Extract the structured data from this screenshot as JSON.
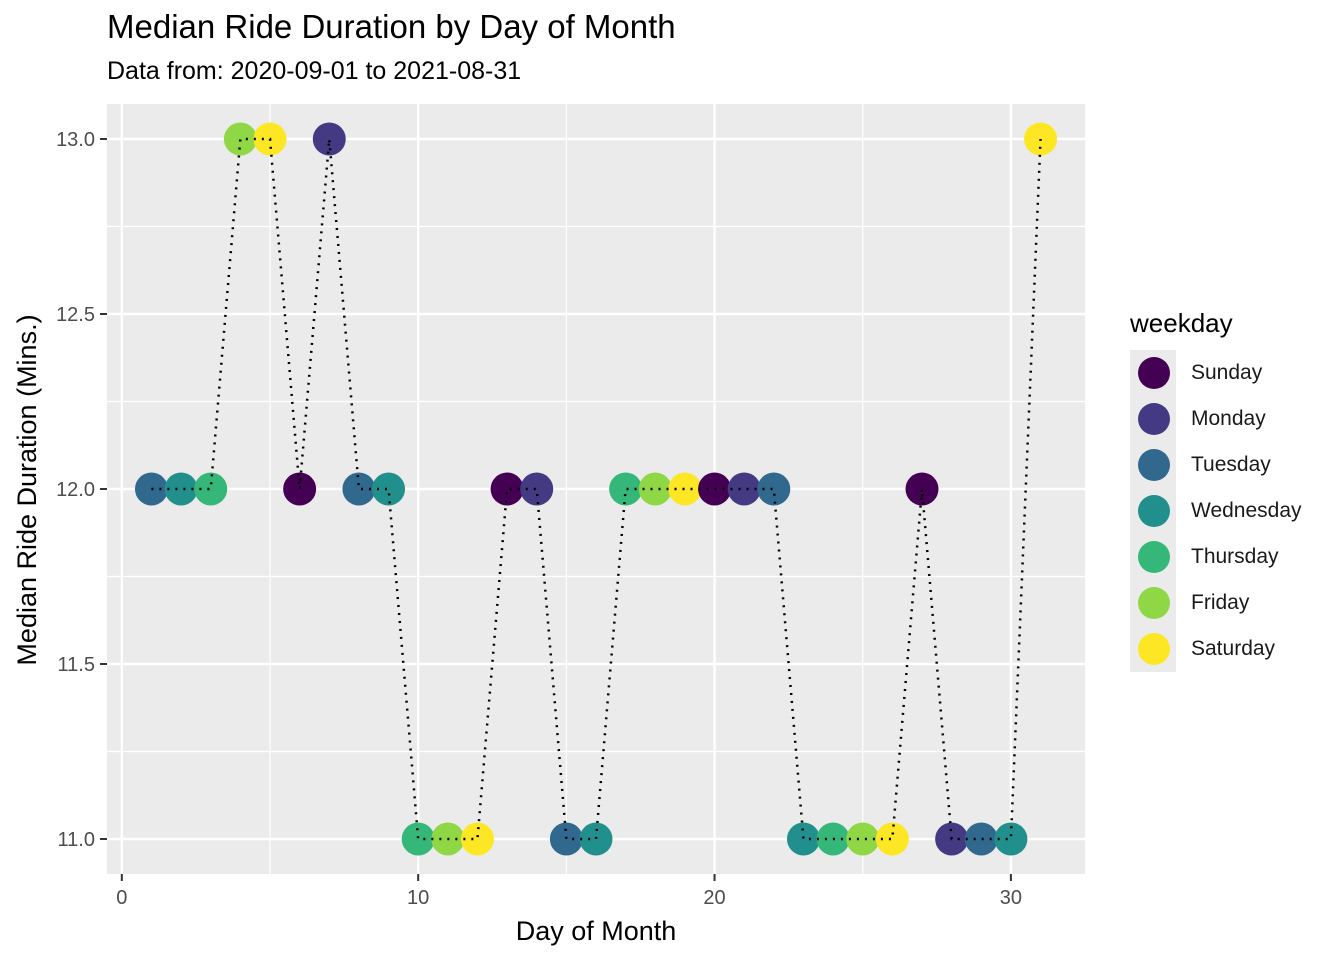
{
  "title": "Median Ride Duration by Day of Month",
  "subtitle": "Data from: 2020-09-01 to 2021-08-31",
  "chart_data": {
    "type": "scatter",
    "title": "Median Ride Duration by Day of Month",
    "subtitle": "Data from: 2020-09-01 to 2021-08-31",
    "xlabel": "Day of Month",
    "ylabel": "Median Ride Duration (Mins.)",
    "xlim": [
      -0.5,
      32.5
    ],
    "ylim": [
      10.9,
      13.1
    ],
    "x_ticks": [
      0,
      10,
      20,
      30
    ],
    "x_tick_labels": [
      "0",
      "10",
      "20",
      "30"
    ],
    "y_ticks": [
      11.0,
      11.5,
      12.0,
      12.5,
      13.0
    ],
    "y_tick_labels": [
      "11.0",
      "11.5",
      "12.0",
      "12.5",
      "13.0"
    ],
    "grid": true,
    "connecting_line": "dotted",
    "legend": {
      "title": "weekday",
      "position": "right",
      "entries": [
        {
          "name": "Sunday",
          "color": "#440154"
        },
        {
          "name": "Monday",
          "color": "#443A83"
        },
        {
          "name": "Tuesday",
          "color": "#31688E"
        },
        {
          "name": "Wednesday",
          "color": "#21908C"
        },
        {
          "name": "Thursday",
          "color": "#35B779"
        },
        {
          "name": "Friday",
          "color": "#8FD744"
        },
        {
          "name": "Saturday",
          "color": "#FDE725"
        }
      ]
    },
    "points": [
      {
        "x": 1,
        "y": 12,
        "weekday": "Tuesday"
      },
      {
        "x": 2,
        "y": 12,
        "weekday": "Wednesday"
      },
      {
        "x": 3,
        "y": 12,
        "weekday": "Thursday"
      },
      {
        "x": 4,
        "y": 13,
        "weekday": "Friday"
      },
      {
        "x": 5,
        "y": 13,
        "weekday": "Saturday"
      },
      {
        "x": 6,
        "y": 12,
        "weekday": "Sunday"
      },
      {
        "x": 7,
        "y": 13,
        "weekday": "Monday"
      },
      {
        "x": 8,
        "y": 12,
        "weekday": "Tuesday"
      },
      {
        "x": 9,
        "y": 12,
        "weekday": "Wednesday"
      },
      {
        "x": 10,
        "y": 11,
        "weekday": "Thursday"
      },
      {
        "x": 11,
        "y": 11,
        "weekday": "Friday"
      },
      {
        "x": 12,
        "y": 11,
        "weekday": "Saturday"
      },
      {
        "x": 13,
        "y": 12,
        "weekday": "Sunday"
      },
      {
        "x": 14,
        "y": 12,
        "weekday": "Monday"
      },
      {
        "x": 15,
        "y": 11,
        "weekday": "Tuesday"
      },
      {
        "x": 16,
        "y": 11,
        "weekday": "Wednesday"
      },
      {
        "x": 17,
        "y": 12,
        "weekday": "Thursday"
      },
      {
        "x": 18,
        "y": 12,
        "weekday": "Friday"
      },
      {
        "x": 19,
        "y": 12,
        "weekday": "Saturday"
      },
      {
        "x": 20,
        "y": 12,
        "weekday": "Sunday"
      },
      {
        "x": 21,
        "y": 12,
        "weekday": "Monday"
      },
      {
        "x": 22,
        "y": 12,
        "weekday": "Tuesday"
      },
      {
        "x": 23,
        "y": 11,
        "weekday": "Wednesday"
      },
      {
        "x": 24,
        "y": 11,
        "weekday": "Thursday"
      },
      {
        "x": 25,
        "y": 11,
        "weekday": "Friday"
      },
      {
        "x": 26,
        "y": 11,
        "weekday": "Saturday"
      },
      {
        "x": 27,
        "y": 12,
        "weekday": "Sunday"
      },
      {
        "x": 28,
        "y": 11,
        "weekday": "Monday"
      },
      {
        "x": 29,
        "y": 11,
        "weekday": "Tuesday"
      },
      {
        "x": 30,
        "y": 11,
        "weekday": "Wednesday"
      },
      {
        "x": 31,
        "y": 13,
        "weekday": "Saturday"
      }
    ]
  }
}
